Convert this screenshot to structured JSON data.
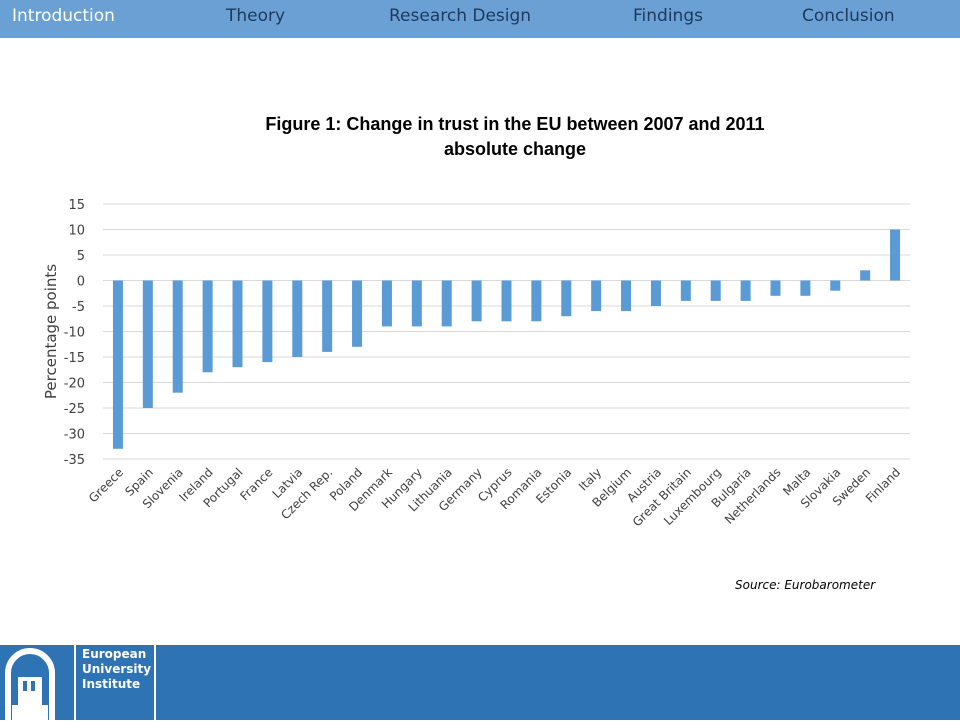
{
  "nav": {
    "items": [
      "Introduction",
      "Theory",
      "Research  Design",
      "Findings",
      "Conclusion"
    ],
    "active_index": 0
  },
  "chart_title": {
    "line1": "Figure 1:  Change in trust in the EU between 2007 and 2011",
    "line2": "absolute change"
  },
  "source": "Source: Eurobarometer",
  "footer": {
    "logo_lines": [
      "European",
      "University",
      "Institute"
    ]
  },
  "colors": {
    "nav_bg": "#6aa0d4",
    "bar": "#5b9bd5",
    "footer_bg": "#2e74b5"
  },
  "chart_data": {
    "type": "bar",
    "title": "Figure 1:  Change in trust in the EU between 2007 and 2011 absolute change",
    "xlabel": "",
    "ylabel": "Percentage  points",
    "ylim": [
      -35,
      15
    ],
    "yticks": [
      15,
      10,
      5,
      0,
      -5,
      -10,
      -15,
      -20,
      -25,
      -30,
      -35
    ],
    "grid": true,
    "categories": [
      "Greece",
      "Spain",
      "Slovenia",
      "Ireland",
      "Portugal",
      "France",
      "Latvia",
      "Czech Rep.",
      "Poland",
      "Denmark",
      "Hungary",
      "Lithuania",
      "Germany",
      "Cyprus",
      "Romania",
      "Estonia",
      "Italy",
      "Belgium",
      "Austria",
      "Great Britain",
      "Luxembourg",
      "Bulgaria",
      "Netherlands",
      "Malta",
      "Slovakia",
      "Sweden",
      "Finland"
    ],
    "values": [
      -33,
      -25,
      -22,
      -18,
      -17,
      -16,
      -15,
      -14,
      -13,
      -9,
      -9,
      -9,
      -8,
      -8,
      -8,
      -7,
      -6,
      -6,
      -5,
      -4,
      -4,
      -4,
      -3,
      -3,
      -2,
      2,
      10
    ]
  }
}
